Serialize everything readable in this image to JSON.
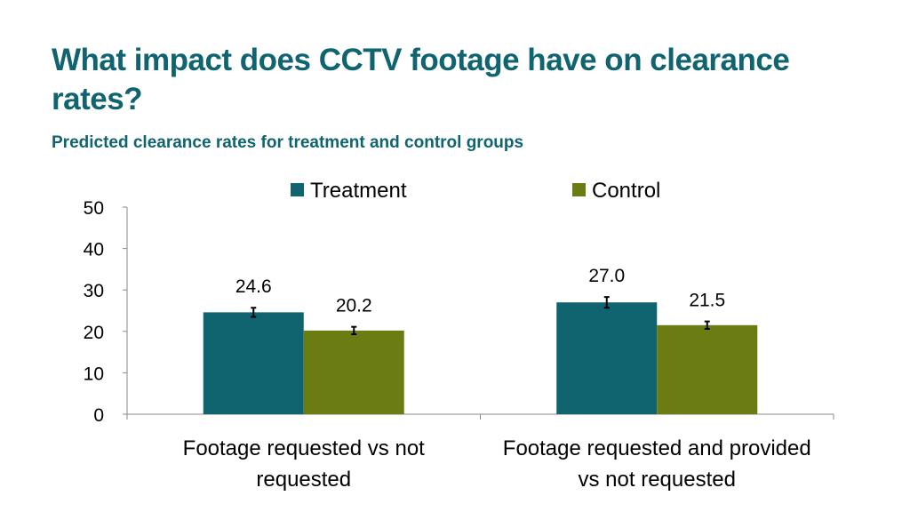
{
  "title": "What impact does CCTV footage have on clearance rates?",
  "subtitle": "Predicted clearance rates for treatment and control groups",
  "chart_data": {
    "type": "bar",
    "categories": [
      "Footage requested vs not requested",
      "Footage requested and provided vs not requested"
    ],
    "category_lines": [
      [
        "Footage requested vs not",
        "requested"
      ],
      [
        "Footage requested and provided",
        "vs not requested"
      ]
    ],
    "series": [
      {
        "name": "Treatment",
        "values": [
          24.6,
          27.0
        ],
        "labels": [
          "24.6",
          "27.0"
        ],
        "error": [
          1.1,
          1.3
        ],
        "color": "#0f6470"
      },
      {
        "name": "Control",
        "values": [
          20.2,
          21.5
        ],
        "labels": [
          "20.2",
          "21.5"
        ],
        "error": [
          0.9,
          0.9
        ],
        "color": "#6b7d12"
      }
    ],
    "ylim": [
      0,
      50
    ],
    "yticks": [
      "0",
      "10",
      "20",
      "30",
      "40",
      "50"
    ],
    "grid": false,
    "legend": "top",
    "error_bars": true
  }
}
